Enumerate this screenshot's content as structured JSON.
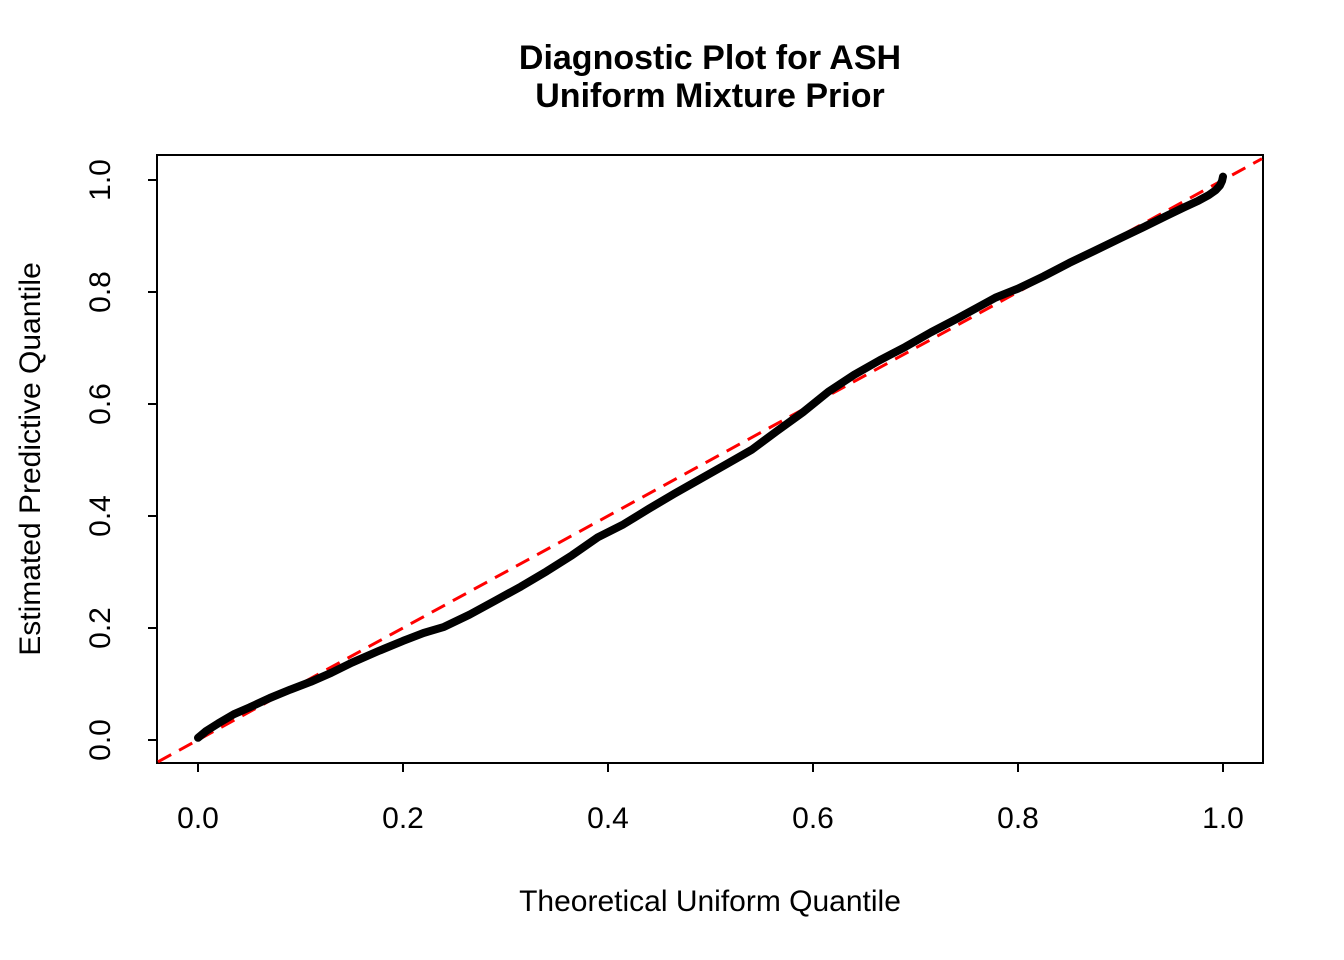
{
  "figure": {
    "background": "#ffffff",
    "title_line1": "Diagnostic Plot for ASH",
    "title_line2": "Uniform Mixture Prior",
    "xlabel": "Theoretical Uniform Quantile",
    "ylabel": "Estimated Predictive Quantile"
  },
  "chart_data": {
    "type": "line",
    "title": "Diagnostic Plot for ASH\nUniform Mixture Prior",
    "xlabel": "Theoretical Uniform Quantile",
    "ylabel": "Estimated Predictive Quantile",
    "xlim": [
      -0.04,
      1.04
    ],
    "ylim": [
      -0.04,
      1.04
    ],
    "grid": false,
    "legend": false,
    "x_tick_labels": [
      "0.0",
      "0.2",
      "0.4",
      "0.6",
      "0.8",
      "1.0"
    ],
    "y_tick_labels": [
      "0.0",
      "0.2",
      "0.4",
      "0.6",
      "0.8",
      "1.0"
    ],
    "x_tick_values": [
      0.0,
      0.2,
      0.4,
      0.6,
      0.8,
      1.0
    ],
    "y_tick_values": [
      0.0,
      0.2,
      0.4,
      0.6,
      0.8,
      1.0
    ],
    "series": [
      {
        "name": "estimated-predictive-quantiles",
        "type": "thick-point-curve",
        "color": "#000000",
        "line_width": 8,
        "points": [
          [
            0.0,
            0.004
          ],
          [
            0.008,
            0.016
          ],
          [
            0.02,
            0.03
          ],
          [
            0.035,
            0.046
          ],
          [
            0.05,
            0.058
          ],
          [
            0.07,
            0.075
          ],
          [
            0.09,
            0.09
          ],
          [
            0.11,
            0.104
          ],
          [
            0.13,
            0.12
          ],
          [
            0.15,
            0.138
          ],
          [
            0.175,
            0.158
          ],
          [
            0.2,
            0.177
          ],
          [
            0.22,
            0.191
          ],
          [
            0.24,
            0.202
          ],
          [
            0.265,
            0.224
          ],
          [
            0.29,
            0.249
          ],
          [
            0.315,
            0.274
          ],
          [
            0.34,
            0.301
          ],
          [
            0.365,
            0.33
          ],
          [
            0.39,
            0.362
          ],
          [
            0.415,
            0.385
          ],
          [
            0.44,
            0.413
          ],
          [
            0.465,
            0.44
          ],
          [
            0.49,
            0.466
          ],
          [
            0.515,
            0.492
          ],
          [
            0.54,
            0.518
          ],
          [
            0.565,
            0.552
          ],
          [
            0.59,
            0.585
          ],
          [
            0.615,
            0.622
          ],
          [
            0.64,
            0.652
          ],
          [
            0.665,
            0.678
          ],
          [
            0.69,
            0.702
          ],
          [
            0.715,
            0.728
          ],
          [
            0.74,
            0.752
          ],
          [
            0.76,
            0.772
          ],
          [
            0.778,
            0.79
          ],
          [
            0.8,
            0.806
          ],
          [
            0.825,
            0.828
          ],
          [
            0.85,
            0.852
          ],
          [
            0.875,
            0.874
          ],
          [
            0.9,
            0.896
          ],
          [
            0.925,
            0.918
          ],
          [
            0.945,
            0.936
          ],
          [
            0.962,
            0.951
          ],
          [
            0.976,
            0.963
          ],
          [
            0.986,
            0.973
          ],
          [
            0.993,
            0.982
          ],
          [
            0.997,
            0.99
          ],
          [
            0.999,
            0.998
          ],
          [
            1.0,
            1.006
          ]
        ]
      },
      {
        "name": "identity-reference-line",
        "type": "dashed-line",
        "color": "#FF0000",
        "line_width": 3,
        "dash": [
          15,
          9
        ],
        "points": [
          [
            -0.039,
            -0.039
          ],
          [
            1.038,
            1.038
          ]
        ]
      }
    ]
  }
}
